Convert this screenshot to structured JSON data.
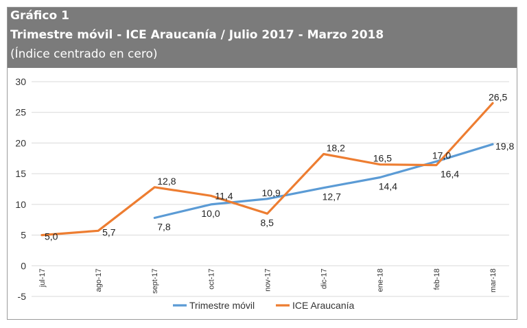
{
  "header": {
    "line1": "Gráfico 1",
    "line2": "Trimestre móvil - ICE Araucanía / Julio 2017 - Marzo 2018",
    "line3": "(Índice centrado en cero)"
  },
  "chart_data": {
    "type": "line",
    "title": "Trimestre móvil - ICE Araucanía / Julio 2017 - Marzo 2018",
    "subtitle": "(Índice centrado en cero)",
    "categories": [
      "jul-17",
      "ago-17",
      "sept-17",
      "oct-17",
      "nov-17",
      "dic-17",
      "ene-18",
      "feb-18",
      "mar-18"
    ],
    "ylim": [
      -5,
      30
    ],
    "yticks": [
      -5,
      0,
      5,
      10,
      15,
      20,
      25,
      30
    ],
    "grid": true,
    "legend_position": "bottom",
    "series": [
      {
        "name": "Trimestre móvil",
        "color": "#5b9bd5",
        "values": [
          null,
          null,
          7.8,
          10.0,
          10.9,
          12.7,
          14.4,
          17.0,
          19.8
        ],
        "labels": [
          null,
          null,
          "7,8",
          "10,0",
          "10,9",
          "12,7",
          "14,4",
          "17,0",
          "19,8"
        ]
      },
      {
        "name": "ICE Araucanía",
        "color": "#ed7d31",
        "values": [
          5.0,
          5.7,
          12.8,
          11.4,
          8.5,
          18.2,
          16.5,
          16.4,
          26.5
        ],
        "labels": [
          "5,0",
          "5,7",
          "12,8",
          "11,4",
          "8,5",
          "18,2",
          "16,5",
          "16,4",
          "26,5"
        ]
      }
    ]
  }
}
